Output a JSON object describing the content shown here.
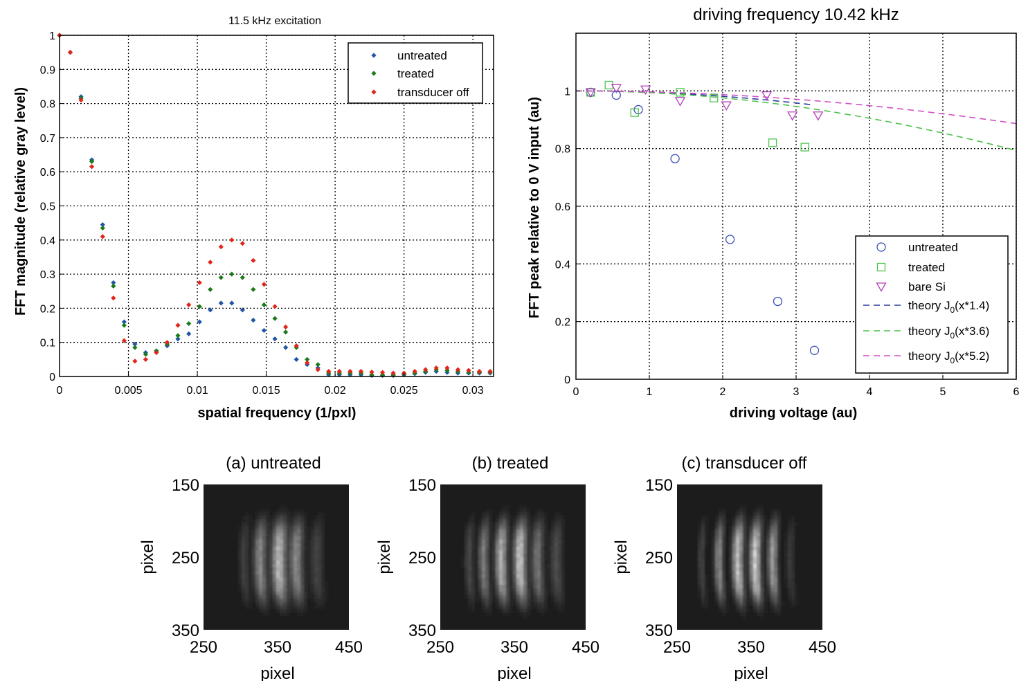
{
  "chart_data": [
    {
      "type": "scatter",
      "title": "11.5 kHz excitation",
      "xlabel": "spatial frequency (1/pxl)",
      "ylabel": "FFT magnitude (relative gray level)",
      "xlim": [
        0,
        0.0315
      ],
      "ylim": [
        0,
        1
      ],
      "xticks": [
        0,
        0.005,
        0.01,
        0.015,
        0.02,
        0.025,
        0.03
      ],
      "xtick_labels": [
        "0",
        "0.005",
        "0.01",
        "0.015",
        "0.02",
        "0.025",
        "0.03"
      ],
      "yticks": [
        0,
        0.1,
        0.2,
        0.3,
        0.4,
        0.5,
        0.6,
        0.7,
        0.8,
        0.9,
        1
      ],
      "ytick_labels": [
        "0",
        "0.1",
        "0.2",
        "0.3",
        "0.4",
        "0.5",
        "0.6",
        "0.7",
        "0.8",
        "0.9",
        "1"
      ],
      "grid": true,
      "legend_position": "top-right",
      "x": [
        0,
        0.00078,
        0.00156,
        0.00234,
        0.00313,
        0.00391,
        0.00469,
        0.00547,
        0.00625,
        0.00703,
        0.00781,
        0.00859,
        0.00938,
        0.01016,
        0.01094,
        0.01172,
        0.0125,
        0.01328,
        0.01406,
        0.01484,
        0.01563,
        0.01641,
        0.01719,
        0.01797,
        0.01875,
        0.01953,
        0.02031,
        0.02109,
        0.02188,
        0.02266,
        0.02344,
        0.02422,
        0.025,
        0.02578,
        0.02656,
        0.02734,
        0.02813,
        0.02891,
        0.02969,
        0.03047,
        0.03125
      ],
      "series": [
        {
          "name": "untreated",
          "color": "#2155a6",
          "values": [
            1,
            0.95,
            0.82,
            0.635,
            0.445,
            0.275,
            0.16,
            0.095,
            0.07,
            0.075,
            0.09,
            0.11,
            0.125,
            0.16,
            0.195,
            0.215,
            0.215,
            0.195,
            0.165,
            0.135,
            0.11,
            0.085,
            0.05,
            0.035,
            0.025,
            0.005,
            0.005,
            0.005,
            0.005,
            0.003,
            0.003,
            0.003,
            0.005,
            0.008,
            0.012,
            0.015,
            0.012,
            0.01,
            0.01,
            0.01,
            0.01
          ]
        },
        {
          "name": "treated",
          "color": "#1a7a1a",
          "values": [
            1,
            0.95,
            0.815,
            0.63,
            0.435,
            0.265,
            0.15,
            0.085,
            0.065,
            0.075,
            0.095,
            0.12,
            0.155,
            0.205,
            0.255,
            0.29,
            0.3,
            0.29,
            0.255,
            0.21,
            0.17,
            0.13,
            0.085,
            0.05,
            0.035,
            0.01,
            0.01,
            0.01,
            0.01,
            0.005,
            0.005,
            0.005,
            0.007,
            0.01,
            0.015,
            0.02,
            0.018,
            0.015,
            0.012,
            0.012,
            0.012
          ]
        },
        {
          "name": "transducer off",
          "color": "#e0261a",
          "values": [
            1,
            0.95,
            0.81,
            0.615,
            0.41,
            0.23,
            0.105,
            0.045,
            0.05,
            0.07,
            0.1,
            0.15,
            0.21,
            0.275,
            0.335,
            0.38,
            0.4,
            0.39,
            0.34,
            0.27,
            0.205,
            0.145,
            0.09,
            0.04,
            0.02,
            0.015,
            0.015,
            0.015,
            0.015,
            0.013,
            0.012,
            0.01,
            0.01,
            0.015,
            0.02,
            0.025,
            0.025,
            0.02,
            0.018,
            0.015,
            0.015
          ]
        }
      ]
    },
    {
      "type": "scatter",
      "title": "driving frequency 10.42 kHz",
      "xlabel": "driving voltage (au)",
      "ylabel": "FFT peak relative to 0 V input (au)",
      "xlim": [
        0,
        6
      ],
      "ylim": [
        0,
        1.2
      ],
      "xticks": [
        0,
        1,
        2,
        3,
        4,
        5,
        6
      ],
      "xtick_labels": [
        "0",
        "1",
        "2",
        "3",
        "4",
        "5",
        "6"
      ],
      "yticks": [
        0,
        0.2,
        0.4,
        0.6,
        0.8,
        1
      ],
      "ytick_labels": [
        "0",
        "0.2",
        "0.4",
        "0.6",
        "0.8",
        "1"
      ],
      "grid": true,
      "legend_position": "bottom-right",
      "series": [
        {
          "name": "untreated",
          "marker": "circle",
          "color": "#3a4fb5",
          "x": [
            0.2,
            0.55,
            0.85,
            1.35,
            2.1,
            2.75,
            3.25
          ],
          "y": [
            0.995,
            0.985,
            0.935,
            0.765,
            0.485,
            0.27,
            0.1
          ]
        },
        {
          "name": "treated",
          "marker": "square",
          "color": "#4cc24c",
          "x": [
            0.2,
            0.45,
            0.8,
            1.42,
            1.88,
            2.68,
            3.12
          ],
          "y": [
            0.995,
            1.02,
            0.925,
            0.995,
            0.975,
            0.82,
            0.805
          ]
        },
        {
          "name": "bare Si",
          "marker": "triangle-down",
          "color": "#b040b8",
          "x": [
            0.2,
            0.55,
            0.95,
            1.42,
            2.05,
            2.6,
            2.95,
            3.3
          ],
          "y": [
            0.995,
            1.01,
            1.005,
            0.965,
            0.95,
            0.985,
            0.915,
            0.915
          ]
        }
      ],
      "theory": [
        {
          "label_prefix": "theory J",
          "subscript": "0",
          "label_suffix": "(x*1.4)",
          "factor": 1.4,
          "a": 0.098,
          "x_max": 3.22,
          "color": "#2a3a9c"
        },
        {
          "label_prefix": "theory J",
          "subscript": "0",
          "label_suffix": "(x*3.6)",
          "factor": 3.6,
          "a": 0.0433,
          "x_max": 6,
          "color": "#4cc24c"
        },
        {
          "label_prefix": "theory J",
          "subscript": "0",
          "label_suffix": "(x*5.2)",
          "factor": 5.2,
          "a": 0.0219,
          "x_max": 6,
          "color": "#d050c8"
        }
      ]
    },
    {
      "type": "heatmap",
      "title": "(a) untreated",
      "xlabel": "pixel",
      "ylabel": "pixel",
      "xtick_labels": [
        "250",
        "350",
        "450"
      ],
      "ytick_labels": [
        "150",
        "250",
        "350"
      ],
      "fringes": [
        {
          "pos": 0.28,
          "amp": 0.18,
          "w": 0.022
        },
        {
          "pos": 0.39,
          "amp": 0.55,
          "w": 0.028
        },
        {
          "pos": 0.52,
          "amp": 0.8,
          "w": 0.032
        },
        {
          "pos": 0.64,
          "amp": 0.55,
          "w": 0.03
        },
        {
          "pos": 0.78,
          "amp": 0.2,
          "w": 0.03
        }
      ]
    },
    {
      "type": "heatmap",
      "title": "(b) treated",
      "xlabel": "pixel",
      "ylabel": "pixel",
      "xtick_labels": [
        "250",
        "350",
        "450"
      ],
      "ytick_labels": [
        "150",
        "250",
        "350"
      ],
      "fringes": [
        {
          "pos": 0.2,
          "amp": 0.22,
          "w": 0.02
        },
        {
          "pos": 0.3,
          "amp": 0.5,
          "w": 0.022
        },
        {
          "pos": 0.42,
          "amp": 0.75,
          "w": 0.026
        },
        {
          "pos": 0.55,
          "amp": 0.85,
          "w": 0.028
        },
        {
          "pos": 0.67,
          "amp": 0.45,
          "w": 0.026
        },
        {
          "pos": 0.8,
          "amp": 0.25,
          "w": 0.028
        }
      ]
    },
    {
      "type": "heatmap",
      "title": "(c) transducer off",
      "xlabel": "pixel",
      "ylabel": "pixel",
      "xtick_labels": [
        "250",
        "350",
        "450"
      ],
      "ytick_labels": [
        "150",
        "250",
        "350"
      ],
      "fringes": [
        {
          "pos": 0.17,
          "amp": 0.2,
          "w": 0.016
        },
        {
          "pos": 0.29,
          "amp": 0.55,
          "w": 0.02
        },
        {
          "pos": 0.42,
          "amp": 0.85,
          "w": 0.024
        },
        {
          "pos": 0.54,
          "amp": 0.9,
          "w": 0.024
        },
        {
          "pos": 0.66,
          "amp": 0.65,
          "w": 0.022
        },
        {
          "pos": 0.78,
          "amp": 0.15,
          "w": 0.02
        }
      ]
    }
  ]
}
